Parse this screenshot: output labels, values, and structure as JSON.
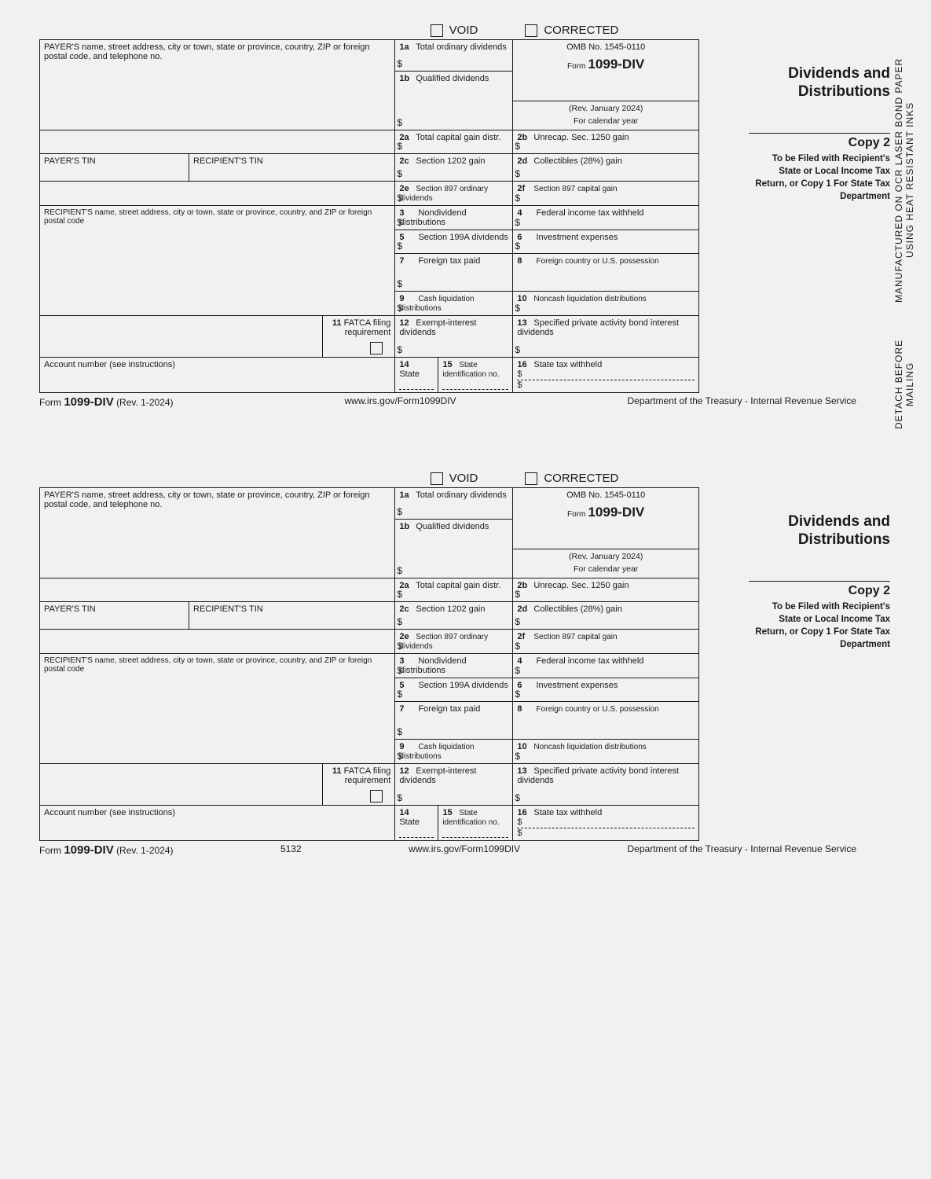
{
  "sideText1": "DETACH BEFORE MAILING",
  "sideText2": "MANUFACTURED  ON OCR LASER BOND PAPER USING HEAT RESISTANT INKS",
  "void": "VOID",
  "corrected": "CORRECTED",
  "payerAddr": "PAYER'S name, street address, city or town, state or province, country, ZIP or foreign postal code, and telephone no.",
  "payerTin": "PAYER'S TIN",
  "recipTin": "RECIPIENT'S TIN",
  "recipAddr": "RECIPIENT'S name, street address, city or town, state or province, country, and ZIP or foreign postal code",
  "acctNum": "Account number (see instructions)",
  "b1a": "Total ordinary dividends",
  "b1b": "Qualified dividends",
  "b2a": "Total capital gain distr.",
  "b2b": "Unrecap. Sec. 1250 gain",
  "b2c": "Section 1202 gain",
  "b2d": "Collectibles (28%) gain",
  "b2e": "Section 897 ordinary dividends",
  "b2f": "Section 897 capital gain",
  "b3": "Nondividend distributions",
  "b4": "Federal income tax withheld",
  "b5": "Section 199A dividends",
  "b6": "Investment expenses",
  "b7": "Foreign tax paid",
  "b8": "Foreign country or U.S. possession",
  "b9": "Cash liquidation distributions",
  "b10": "Noncash liquidation distributions",
  "b11": "FATCA filing requirement",
  "b12": "Exempt-interest dividends",
  "b13": "Specified private activity bond interest dividends",
  "b14": "State",
  "b15": "State identification no.",
  "b16": "State tax withheld",
  "omb": "OMB No. 1545-0110",
  "formNum": "1099-DIV",
  "formPrefix": "Form",
  "rev": "(Rev. January 2024)",
  "calYear": "For calendar year",
  "title": "Dividends and Distributions",
  "copy": "Copy 2",
  "copyDesc": "To be Filed with Recipient's State or Local Income Tax Return, or Copy 1 For State Tax Department",
  "footerForm": "Form",
  "footerNum": "1099-DIV",
  "footerRev": "(Rev. 1-2024)",
  "url": "www.irs.gov/Form1099DIV",
  "dept": "Department of the Treasury - Internal Revenue Service",
  "code": "5132"
}
